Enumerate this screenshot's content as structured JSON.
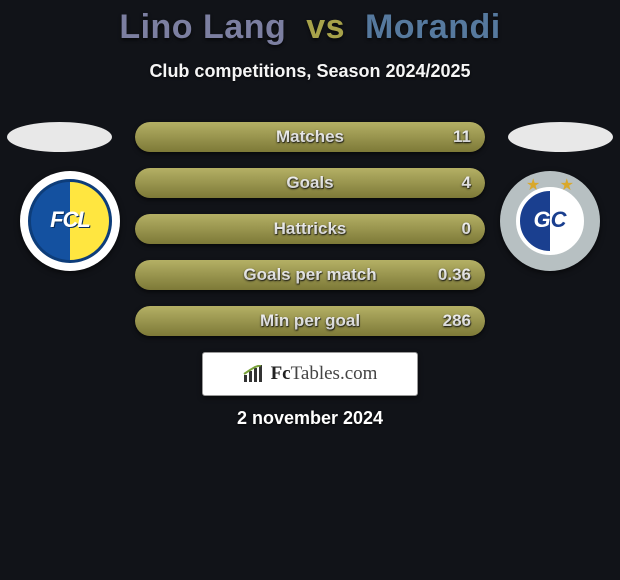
{
  "title": {
    "player1": "Lino Lang",
    "vs": "vs",
    "player2": "Morandi",
    "player1_color": "#7c7fa1",
    "vs_color": "#a7a24a",
    "player2_color": "#56799e",
    "fontsize": 34
  },
  "subtitle": {
    "text": "Club competitions, Season 2024/2025",
    "fontsize": 18
  },
  "colors": {
    "background": "#111318",
    "bar_fill_left": "#a7a24a",
    "bar_fill_right_bg": "#464531",
    "bar_radius": 16,
    "text_shadow": "0 1px 2px rgba(0,0,0,0.85)"
  },
  "bars": {
    "label_fontsize": 17,
    "value_fontsize": 17,
    "height": 30,
    "gap": 16,
    "rows": [
      {
        "label": "Matches",
        "left": null,
        "right": "11",
        "left_pct": 100
      },
      {
        "label": "Goals",
        "left": null,
        "right": "4",
        "left_pct": 100
      },
      {
        "label": "Hattricks",
        "left": null,
        "right": "0",
        "left_pct": 100
      },
      {
        "label": "Goals per match",
        "left": null,
        "right": "0.36",
        "left_pct": 100
      },
      {
        "label": "Min per goal",
        "left": null,
        "right": "286",
        "left_pct": 100
      }
    ]
  },
  "logo": {
    "brand_bold": "Fc",
    "brand_rest": "Tables.com"
  },
  "date": {
    "text": "2 november 2024",
    "fontsize": 18
  },
  "badges": {
    "left": {
      "fcl_text": "FCL"
    },
    "right": {
      "gc_g": "G",
      "gc_c": "C"
    }
  }
}
